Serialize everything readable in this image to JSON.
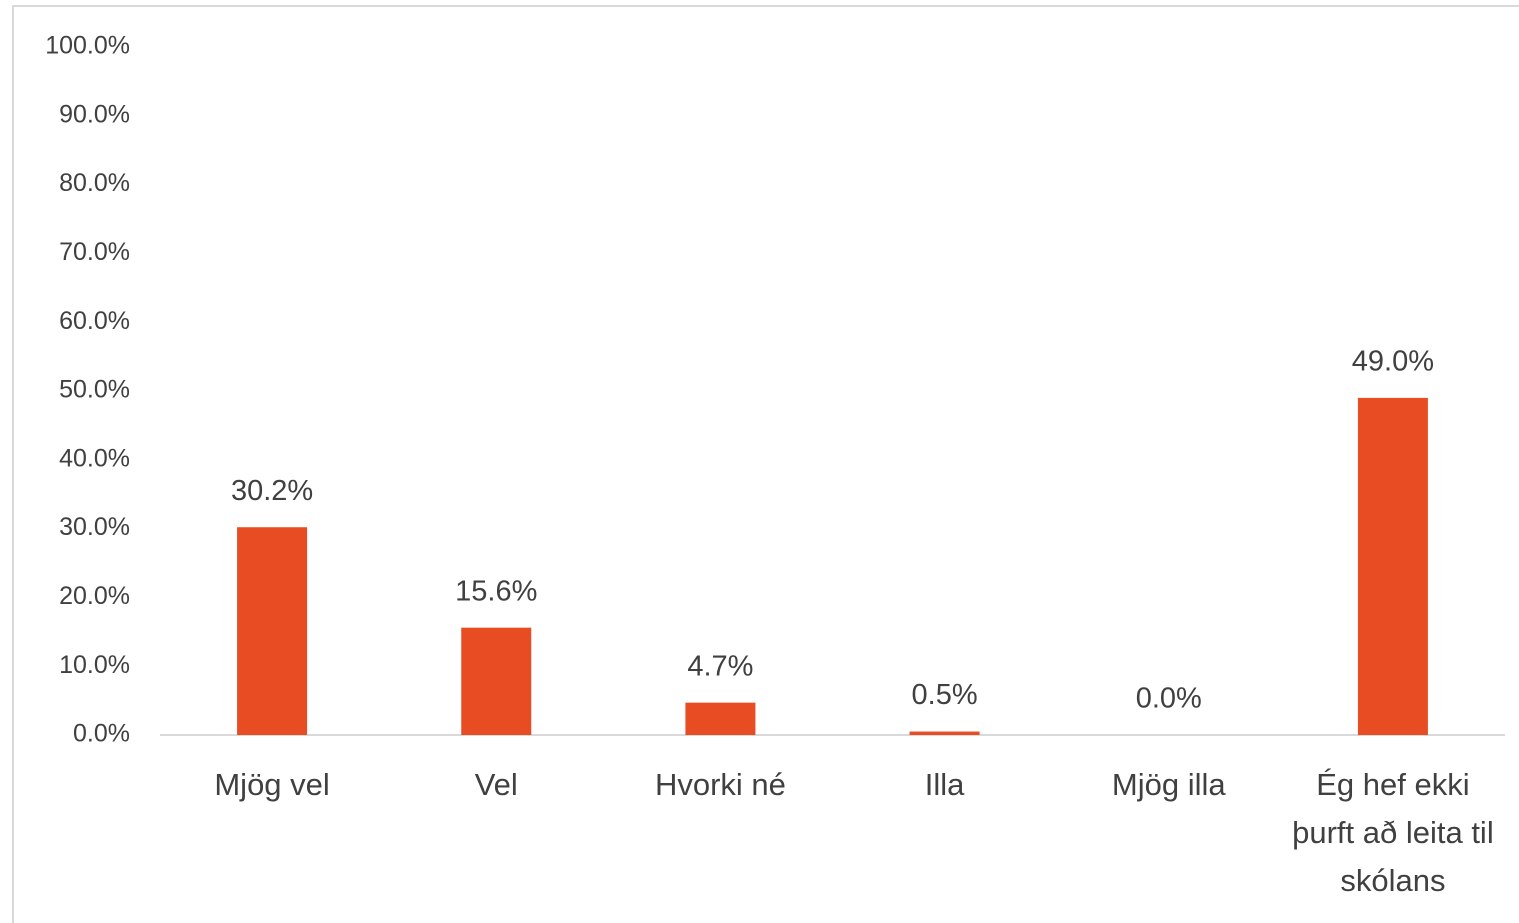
{
  "chart_data": {
    "type": "bar",
    "categories": [
      "Mjög vel",
      "Vel",
      "Hvorki né",
      "Illa",
      "Mjög illa",
      "Ég hef ekki þurft að leita til skólans"
    ],
    "values": [
      30.2,
      15.6,
      4.7,
      0.5,
      0.0,
      49.0
    ],
    "value_labels": [
      "30.2%",
      "15.6%",
      "4.7%",
      "0.5%",
      "0.0%",
      "49.0%"
    ],
    "color": "#e84c22",
    "ylim": [
      0,
      100
    ],
    "yticks": [
      {
        "value": 0,
        "label": "0.0%"
      },
      {
        "value": 10,
        "label": "10.0%"
      },
      {
        "value": 20,
        "label": "20.0%"
      },
      {
        "value": 30,
        "label": "30.0%"
      },
      {
        "value": 40,
        "label": "40.0%"
      },
      {
        "value": 50,
        "label": "50.0%"
      },
      {
        "value": 60,
        "label": "60.0%"
      },
      {
        "value": 70,
        "label": "70.0%"
      },
      {
        "value": 80,
        "label": "80.0%"
      },
      {
        "value": 90,
        "label": "90.0%"
      },
      {
        "value": 100,
        "label": "100.0%"
      }
    ],
    "grid": false
  }
}
